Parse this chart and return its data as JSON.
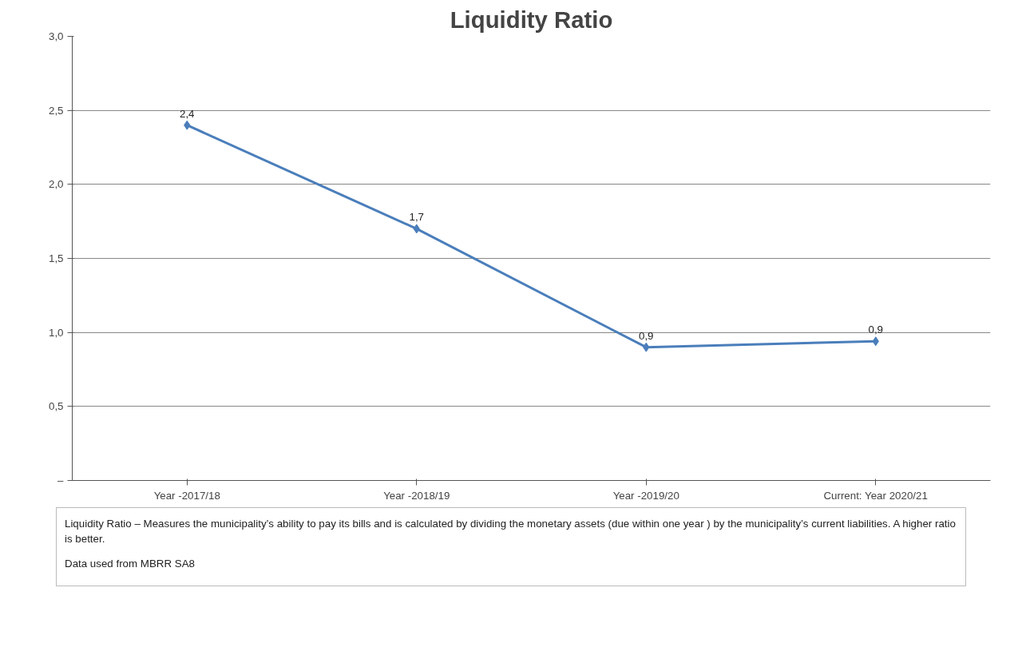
{
  "chart_data": {
    "type": "line",
    "title": "Liquidity Ratio",
    "categories": [
      "Year -2017/18",
      "Year -2018/19",
      "Year -2019/20",
      "Current: Year 2020/21"
    ],
    "series": [
      {
        "color": "#4a7ebb",
        "values": [
          2.4,
          1.7,
          0.9,
          0.94
        ],
        "value_labels": [
          "2,4",
          "1,7",
          "0,9",
          "0,9"
        ]
      }
    ],
    "ylim": [
      0,
      3.0
    ],
    "yticks": [
      {
        "value": 0,
        "label": "–"
      },
      {
        "value": 0.5,
        "label": "0,5"
      },
      {
        "value": 1.0,
        "label": "1,0"
      },
      {
        "value": 1.5,
        "label": "1,5"
      },
      {
        "value": 2.0,
        "label": "2,0"
      },
      {
        "value": 2.5,
        "label": "2,5"
      },
      {
        "value": 3.0,
        "label": "3,0"
      }
    ],
    "grid": "y",
    "marker": "diamond",
    "line_style": "solid",
    "annotations": [
      "Liquidity Ratio – Measures the municipality’s ability to pay its bills and is calculated by dividing the monetary assets (due within one year ) by the municipality’s current liabilities. A higher ratio is better.",
      "Data used from  MBRR SA8"
    ]
  }
}
